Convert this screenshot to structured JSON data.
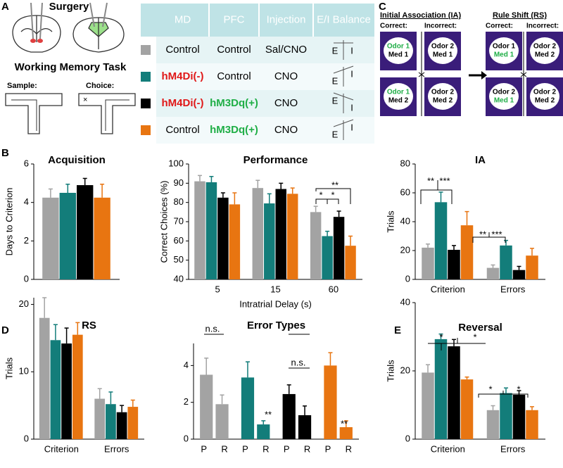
{
  "panel_labels": [
    "A",
    "B",
    "C",
    "D",
    "E"
  ],
  "surgery": {
    "title": "Surgery"
  },
  "task": {
    "title": "Working Memory Task",
    "sample": "Sample:",
    "choice": "Choice:"
  },
  "table": {
    "header": [
      "MD",
      "PFC",
      "Injection",
      "E/I Balance"
    ],
    "rows": [
      [
        "Control",
        "Control",
        "Sal/CNO"
      ],
      [
        "hM4Di(-)",
        "Control",
        "CNO"
      ],
      [
        "hM4Di(-)",
        "hM3Dq(+)",
        "CNO"
      ],
      [
        "Control",
        "hM3Dq(+)",
        "CNO"
      ]
    ],
    "colors": [
      "#a3a3a3",
      "#137d7a",
      "#000000",
      "#e87511"
    ],
    "balance_labels": [
      "E",
      "I"
    ]
  },
  "rule_task": {
    "ia": "Initial Association (IA)",
    "rs": "Rule Shift (RS)",
    "correct": "Correct:",
    "incorrect": "Incorrect:",
    "boxes": [
      [
        "Odor 1",
        "Med 1"
      ],
      [
        "Odor 2",
        "Med 1"
      ],
      [
        "Odor 1",
        "Med 2"
      ],
      [
        "Odor 2",
        "Med 2"
      ],
      [
        "Odor 1",
        "Med 1"
      ],
      [
        "Odor 2",
        "Med 2"
      ],
      [
        "Odor 2",
        "Med 1"
      ],
      [
        "Odor 2",
        "Med 2"
      ]
    ]
  },
  "chart_data": [
    {
      "type": "bar",
      "title": "Acquisition",
      "ylabel": "Days to Criterion",
      "categories": [
        null
      ],
      "ylim": [
        0,
        6
      ],
      "yticks": [
        0,
        2,
        4,
        6
      ],
      "series": [
        {
          "color": "#a3a3a3",
          "values": [
            4.25
          ],
          "errors": [
            0.45
          ]
        },
        {
          "color": "#137d7a",
          "values": [
            4.5
          ],
          "errors": [
            0.45
          ]
        },
        {
          "color": "#000000",
          "values": [
            4.9
          ],
          "errors": [
            0.35
          ]
        },
        {
          "color": "#e87511",
          "values": [
            4.25
          ],
          "errors": [
            0.7
          ]
        }
      ]
    },
    {
      "type": "bar",
      "title": "Performance",
      "ylabel": "Correct Choices (%)",
      "xlabel": "Intratrial Delay (s)",
      "categories": [
        5,
        15,
        60
      ],
      "ylim": [
        40,
        100
      ],
      "yticks": [
        40,
        50,
        60,
        70,
        80,
        90,
        100
      ],
      "annotations": [
        "*",
        "*",
        "**"
      ],
      "series": [
        {
          "color": "#a3a3a3",
          "values": [
            91,
            87.5,
            75
          ],
          "errors": [
            3,
            4,
            3
          ]
        },
        {
          "color": "#137d7a",
          "values": [
            90.5,
            79.5,
            62.5
          ],
          "errors": [
            3,
            5,
            2.5
          ]
        },
        {
          "color": "#000000",
          "values": [
            82.5,
            87,
            72.5
          ],
          "errors": [
            2.5,
            3,
            3
          ]
        },
        {
          "color": "#e87511",
          "values": [
            79,
            84.5,
            57.5
          ],
          "errors": [
            6,
            3,
            5
          ]
        }
      ]
    },
    {
      "type": "bar",
      "title": "IA",
      "ylabel": "Trials",
      "categories": [
        "Criterion",
        "Errors"
      ],
      "ylim": [
        0,
        80
      ],
      "yticks": [
        0,
        20,
        40,
        60,
        80
      ],
      "annotations": [
        "**",
        "***",
        "**",
        "***"
      ],
      "series": [
        {
          "color": "#a3a3a3",
          "values": [
            22,
            8
          ],
          "errors": [
            2.5,
            2
          ]
        },
        {
          "color": "#137d7a",
          "values": [
            53.5,
            23.5
          ],
          "errors": [
            7,
            3.5
          ]
        },
        {
          "color": "#000000",
          "values": [
            20.5,
            6.5
          ],
          "errors": [
            3,
            2.5
          ]
        },
        {
          "color": "#e87511",
          "values": [
            37.5,
            16.5
          ],
          "errors": [
            9.5,
            5
          ]
        }
      ]
    },
    {
      "type": "bar",
      "title": "RS",
      "ylabel": "Trials",
      "categories": [
        "Criterion",
        "Errors"
      ],
      "ylim": [
        0,
        21
      ],
      "yticks": [
        0,
        10,
        20
      ],
      "series": [
        {
          "color": "#a3a3a3",
          "values": [
            18,
            6
          ],
          "errors": [
            3,
            1.5
          ]
        },
        {
          "color": "#137d7a",
          "values": [
            14.7,
            5.2
          ],
          "errors": [
            2.3,
            1.8
          ]
        },
        {
          "color": "#000000",
          "values": [
            14.2,
            4
          ],
          "errors": [
            2.3,
            1
          ]
        },
        {
          "color": "#e87511",
          "values": [
            15.5,
            4.8
          ],
          "errors": [
            1.8,
            1
          ]
        }
      ]
    },
    {
      "type": "bar",
      "title": "Error Types",
      "categories": [
        "P",
        "R",
        "P",
        "R",
        "P",
        "R",
        "P",
        "R"
      ],
      "ylim": [
        0,
        5.2
      ],
      "yticks": [
        0,
        2,
        4
      ],
      "annotations": [
        "n.s.",
        "**",
        "n.s.",
        "**"
      ],
      "colors": [
        "#a3a3a3",
        "#a3a3a3",
        "#137d7a",
        "#137d7a",
        "#000000",
        "#000000",
        "#e87511",
        "#e87511"
      ],
      "values": [
        3.5,
        1.9,
        3.35,
        0.8,
        2.45,
        1.3,
        4.0,
        0.65
      ],
      "errors": [
        0.9,
        0.5,
        0.85,
        0.2,
        0.5,
        0.5,
        0.7,
        0.35
      ]
    },
    {
      "type": "bar",
      "title": "Reversal",
      "ylabel": "Trials",
      "categories": [
        "Criterion",
        "Errors"
      ],
      "ylim": [
        0,
        40
      ],
      "yticks": [
        0,
        20,
        40
      ],
      "annotations": [
        "*",
        "*",
        "*",
        "*"
      ],
      "series": [
        {
          "color": "#a3a3a3",
          "values": [
            19.5,
            8.5
          ],
          "errors": [
            2.3,
            1.3
          ]
        },
        {
          "color": "#137d7a",
          "values": [
            29.3,
            13.5
          ],
          "errors": [
            1.5,
            1.5
          ]
        },
        {
          "color": "#000000",
          "values": [
            27.2,
            13
          ],
          "errors": [
            2,
            1.2
          ]
        },
        {
          "color": "#e87511",
          "values": [
            17.5,
            8.5
          ],
          "errors": [
            0.7,
            1
          ]
        }
      ]
    }
  ]
}
